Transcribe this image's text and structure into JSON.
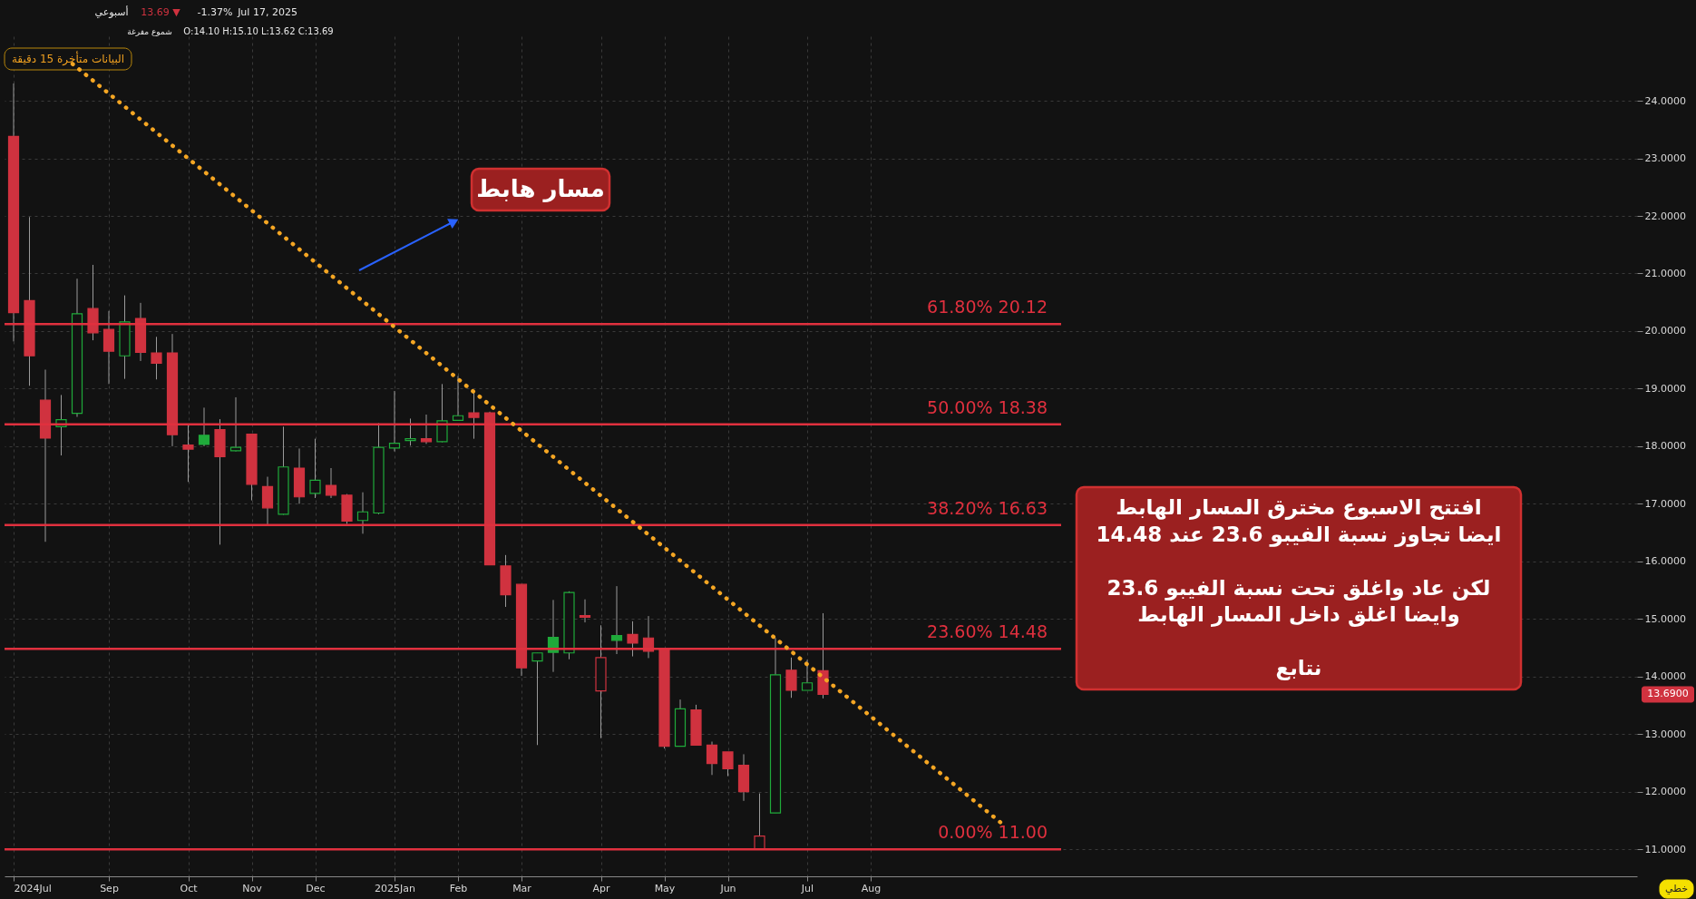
{
  "chart_data": {
    "type": "candlestick",
    "x": [
      "2024-07-21",
      "2024-07-28",
      "2024-08-04",
      "2024-08-11",
      "2024-08-18",
      "2024-08-25",
      "2024-09-01",
      "2024-09-08",
      "2024-09-15",
      "2024-09-22",
      "2024-09-29",
      "2024-10-06",
      "2024-10-13",
      "2024-10-20",
      "2024-10-27",
      "2024-11-03",
      "2024-11-10",
      "2024-11-17",
      "2024-11-24",
      "2024-12-01",
      "2024-12-08",
      "2024-12-15",
      "2024-12-22",
      "2024-12-29",
      "2025-01-05",
      "2025-01-12",
      "2025-01-19",
      "2025-01-26",
      "2025-02-02",
      "2025-02-09",
      "2025-02-16",
      "2025-02-23",
      "2025-03-02",
      "2025-03-09",
      "2025-03-16",
      "2025-03-23",
      "2025-03-30",
      "2025-04-06",
      "2025-04-13",
      "2025-04-20",
      "2025-04-27",
      "2025-05-04",
      "2025-05-11",
      "2025-05-18",
      "2025-05-25",
      "2025-06-01",
      "2025-06-08",
      "2025-06-15",
      "2025-06-22",
      "2025-06-29",
      "2025-07-06",
      "2025-07-13"
    ],
    "ohlc": [
      [
        23.38,
        24.3,
        19.82,
        20.32
      ],
      [
        20.53,
        21.98,
        19.05,
        19.57
      ],
      [
        18.8,
        19.33,
        16.34,
        18.14
      ],
      [
        18.34,
        18.89,
        17.84,
        18.46
      ],
      [
        18.57,
        20.91,
        18.51,
        20.3
      ],
      [
        20.39,
        21.15,
        19.84,
        19.97
      ],
      [
        20.03,
        20.35,
        19.08,
        19.65
      ],
      [
        19.57,
        20.62,
        19.17,
        20.16
      ],
      [
        20.22,
        20.49,
        19.48,
        19.63
      ],
      [
        19.62,
        19.9,
        19.16,
        19.44
      ],
      [
        19.62,
        19.95,
        18.0,
        18.2
      ],
      [
        18.02,
        18.38,
        17.38,
        17.95
      ],
      [
        18.19,
        18.67,
        18.0,
        18.03
      ],
      [
        18.29,
        18.47,
        16.29,
        17.82
      ],
      [
        17.92,
        18.85,
        17.91,
        17.98
      ],
      [
        18.21,
        18.21,
        17.06,
        17.34
      ],
      [
        17.3,
        17.47,
        16.64,
        16.93
      ],
      [
        16.82,
        18.34,
        16.81,
        17.64
      ],
      [
        17.62,
        17.96,
        17.0,
        17.12
      ],
      [
        17.18,
        18.13,
        17.1,
        17.41
      ],
      [
        17.32,
        17.62,
        17.1,
        17.15
      ],
      [
        17.15,
        17.17,
        16.65,
        16.7
      ],
      [
        16.71,
        17.2,
        16.48,
        16.86
      ],
      [
        16.84,
        18.4,
        16.82,
        17.98
      ],
      [
        17.97,
        18.96,
        17.91,
        18.05
      ],
      [
        18.1,
        18.48,
        18.01,
        18.13
      ],
      [
        18.13,
        18.55,
        18.04,
        18.08
      ],
      [
        18.08,
        19.08,
        18.07,
        18.44
      ],
      [
        18.45,
        19.22,
        18.45,
        18.53
      ],
      [
        18.58,
        18.96,
        18.13,
        18.5
      ],
      [
        18.58,
        18.6,
        15.94,
        15.94
      ],
      [
        15.92,
        16.11,
        15.21,
        15.42
      ],
      [
        15.6,
        15.6,
        14.01,
        14.15
      ],
      [
        14.27,
        14.41,
        12.81,
        14.41
      ],
      [
        14.68,
        15.33,
        14.08,
        14.42
      ],
      [
        14.41,
        15.48,
        14.3,
        15.46
      ],
      [
        15.06,
        15.34,
        14.94,
        15.03
      ],
      [
        13.75,
        14.89,
        12.93,
        14.33
      ],
      [
        14.71,
        15.57,
        14.39,
        14.63
      ],
      [
        14.73,
        14.96,
        14.35,
        14.58
      ],
      [
        14.67,
        15.05,
        14.32,
        14.44
      ],
      [
        14.46,
        14.46,
        12.75,
        12.79
      ],
      [
        12.79,
        13.6,
        12.79,
        13.44
      ],
      [
        13.42,
        13.51,
        12.81,
        12.81
      ],
      [
        12.81,
        12.87,
        12.29,
        12.49
      ],
      [
        12.69,
        12.69,
        12.27,
        12.4
      ],
      [
        12.46,
        12.65,
        11.84,
        12.0
      ],
      [
        11.0,
        11.97,
        11.0,
        11.23
      ],
      [
        11.63,
        14.67,
        11.63,
        14.03
      ],
      [
        14.11,
        14.33,
        13.63,
        13.76
      ],
      [
        13.76,
        14.29,
        13.76,
        13.89
      ],
      [
        14.1,
        15.1,
        13.62,
        13.69
      ]
    ],
    "colors": [
      "#d0323f",
      "#d0323f",
      "#d0323f",
      "#1faa3a",
      "#1faa3a",
      "#d0323f",
      "#d0323f",
      "#1faa3a",
      "#d0323f",
      "#d0323f",
      "#d0323f",
      "#d0323f",
      "#1faa3a",
      "#d0323f",
      "#1faa3a",
      "#d0323f",
      "#d0323f",
      "#1faa3a",
      "#d0323f",
      "#1faa3a",
      "#d0323f",
      "#d0323f",
      "#1faa3a",
      "#1faa3a",
      "#1faa3a",
      "#1faa3a",
      "#d0323f",
      "#1faa3a",
      "#1faa3a",
      "#d0323f",
      "#d0323f",
      "#d0323f",
      "#d0323f",
      "#1faa3a",
      "#1faa3a",
      "#1faa3a",
      "#d0323f",
      "#d0323f",
      "#1faa3a",
      "#d0323f",
      "#d0323f",
      "#d0323f",
      "#1faa3a",
      "#d0323f",
      "#d0323f",
      "#d0323f",
      "#d0323f",
      "#d0323f",
      "#1faa3a",
      "#d0323f",
      "#1faa3a",
      "#d0323f"
    ],
    "series": [
      {
        "type": "line",
        "x": [
          "2024-08-16",
          "2025-10-01"
        ],
        "values": [
          24.64,
          11.41
        ],
        "color": "#f5a623",
        "line_style": "dotted"
      }
    ],
    "xlim": [
      "2024-07-19",
      "2026-07-05"
    ],
    "xticks": [
      {
        "value": "2024-07-21",
        "label": "2024Jul"
      },
      {
        "value": "2024-09-01",
        "label": "Sep"
      },
      {
        "value": "2024-10-06",
        "label": "Oct"
      },
      {
        "value": "2024-11-03",
        "label": "Nov"
      },
      {
        "value": "2024-12-01",
        "label": "Dec"
      },
      {
        "value": "2025-01-05",
        "label": "2025Jan"
      },
      {
        "value": "2025-02-02",
        "label": "Feb"
      },
      {
        "value": "2025-03-02",
        "label": "Mar"
      },
      {
        "value": "2025-04-06",
        "label": "Apr"
      },
      {
        "value": "2025-05-04",
        "label": "May"
      },
      {
        "value": "2025-06-01",
        "label": "Jun"
      },
      {
        "value": "2025-07-06",
        "label": "Jul"
      },
      {
        "value": "2025-08-03",
        "label": "Aug"
      }
    ],
    "ylim": [
      10.53,
      25.12
    ],
    "yticks": [
      {
        "value": 11,
        "label": "11.0000"
      },
      {
        "value": 12,
        "label": "12.0000"
      },
      {
        "value": 13,
        "label": "13.0000"
      },
      {
        "value": 14,
        "label": "14.0000"
      },
      {
        "value": 15,
        "label": "15.0000"
      },
      {
        "value": 16,
        "label": "16.0000"
      },
      {
        "value": 17,
        "label": "17.0000"
      },
      {
        "value": 18,
        "label": "18.0000"
      },
      {
        "value": 19,
        "label": "19.0000"
      },
      {
        "value": 20,
        "label": "20.0000"
      },
      {
        "value": 21,
        "label": "21.0000"
      },
      {
        "value": 22,
        "label": "22.0000"
      },
      {
        "value": 23,
        "label": "23.0000"
      },
      {
        "value": 24,
        "label": "24.0000"
      }
    ],
    "grid": true,
    "ref_lines": [
      {
        "axis": "y",
        "value": 20.12,
        "label": "61.80%   20.12",
        "color": "#e0303e"
      },
      {
        "axis": "y",
        "value": 18.38,
        "label": "50.00%   18.38",
        "color": "#e0303e"
      },
      {
        "axis": "y",
        "value": 16.63,
        "label": "38.20%   16.63",
        "color": "#e0303e"
      },
      {
        "axis": "y",
        "value": 14.48,
        "label": "23.60%   14.48",
        "color": "#e0303e"
      },
      {
        "axis": "y",
        "value": 11.0,
        "label": "0.00%   11.00",
        "color": "#e0303e"
      }
    ],
    "annotations": [
      "أسبوعي",
      "13.69 ▼",
      "-1.37%",
      "Jul 17, 2025",
      "شموع مفرغة",
      "O:14.10   H:15.10   L:13.62   C:13.69",
      "البيانات متأخرة 15 دقيقة",
      "مسار هابط",
      "افتتح الاسبوع  مخترق المسار الهابط\nايضا تجاوز نسبة الفيبو 23.6  عند 14.48\n\nلكن عاد واغلق تحت نسبة الفيبو 23.6\nوايضا اغلق داخل المسار الهابط\n\nنتابع",
      "13.6900",
      "خطي"
    ]
  }
}
